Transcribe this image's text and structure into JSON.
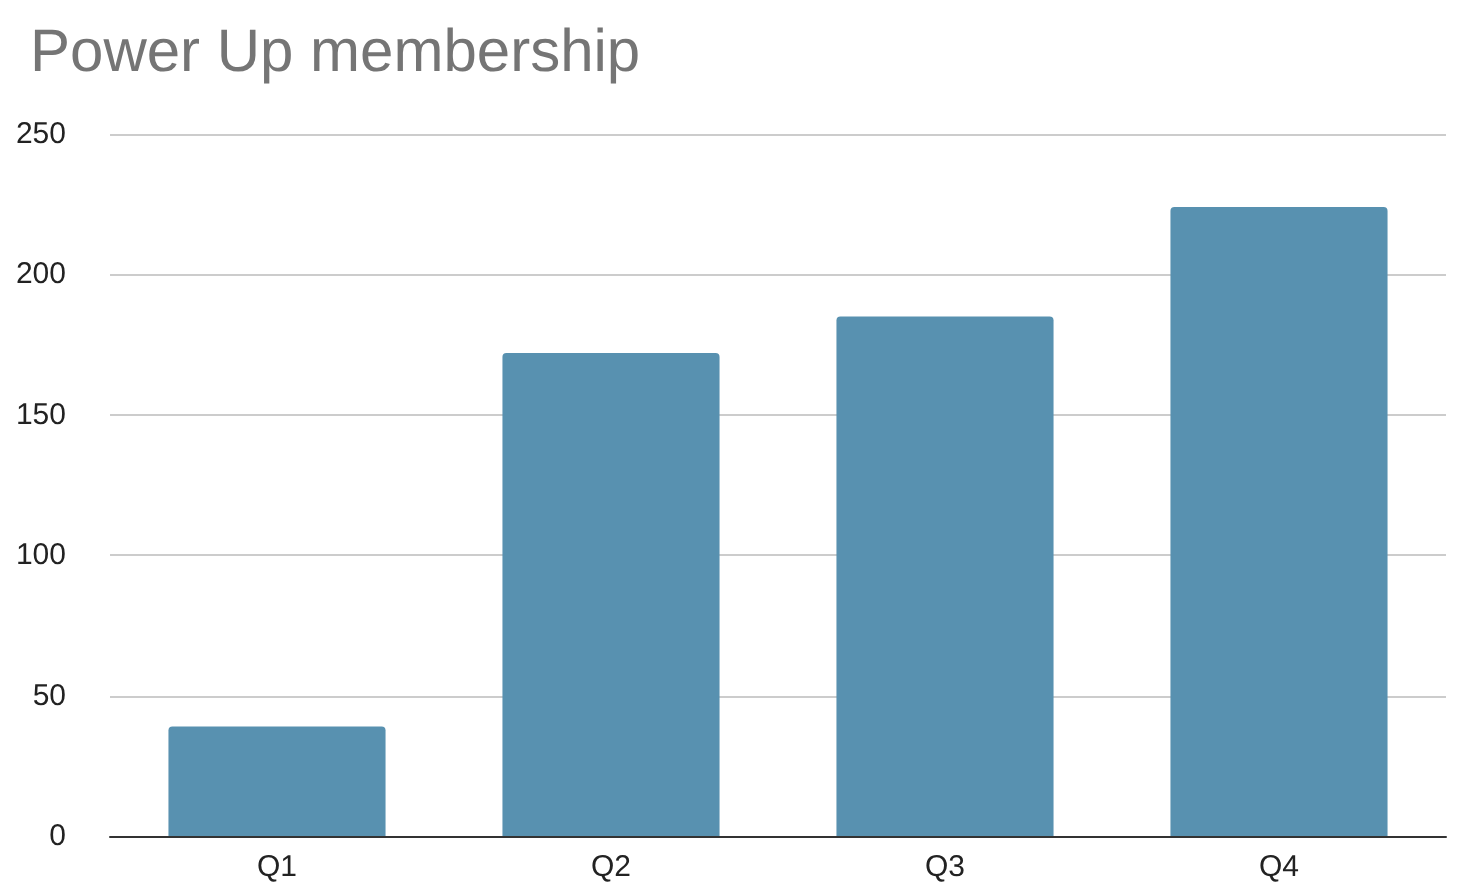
{
  "chart_data": {
    "type": "bar",
    "title": "Power Up membership",
    "categories": [
      "Q1",
      "Q2",
      "Q3",
      "Q4"
    ],
    "values": [
      39,
      172,
      185,
      224
    ],
    "color": "#5891b0",
    "ylim": [
      0,
      250
    ],
    "yticks": [
      0,
      50,
      100,
      150,
      200,
      250
    ],
    "grid": "y"
  }
}
